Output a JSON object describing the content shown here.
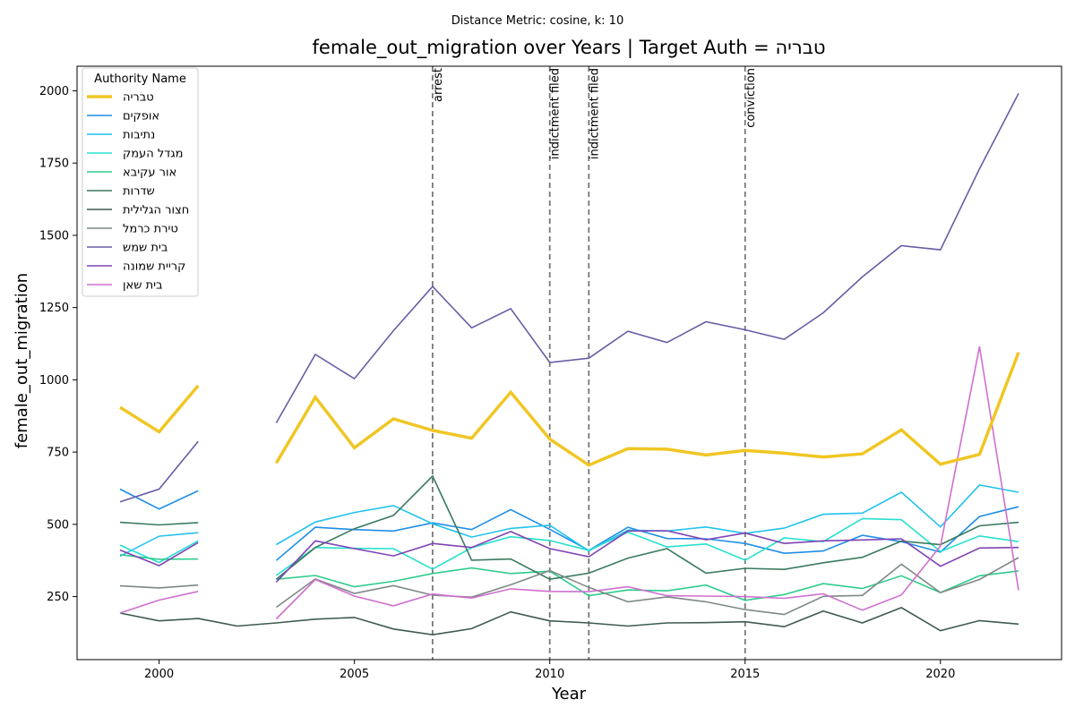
{
  "chart_data": {
    "type": "line",
    "suptitle": "Distance Metric: cosine, k: 10",
    "title": "female_out_migration over Years | Target Auth = טבריה",
    "xlabel": "Year",
    "ylabel": "female_out_migration",
    "xlim": [
      1997.9,
      2023.1
    ],
    "ylim": [
      32,
      2085
    ],
    "xticks": [
      2000,
      2005,
      2010,
      2015,
      2020
    ],
    "yticks": [
      250,
      500,
      750,
      1000,
      1250,
      1500,
      1750,
      2000
    ],
    "grid": false,
    "legend": {
      "title": "Authority Name",
      "placement": "upper-left"
    },
    "x": [
      1999,
      2000,
      2001,
      2002,
      2003,
      2004,
      2005,
      2006,
      2007,
      2008,
      2009,
      2010,
      2011,
      2012,
      2013,
      2014,
      2015,
      2016,
      2017,
      2018,
      2019,
      2020,
      2021,
      2022
    ],
    "events": [
      {
        "year": 2007,
        "label": "arrest"
      },
      {
        "year": 2010,
        "label": "indictment filed"
      },
      {
        "year": 2011,
        "label": "indictment filed"
      },
      {
        "year": 2015,
        "label": "conviction"
      }
    ],
    "series": [
      {
        "name": "טבריה",
        "color": "#f0c623",
        "width": 3.5,
        "values": [
          905,
          820,
          980,
          null,
          712,
          940,
          765,
          865,
          825,
          798,
          957,
          795,
          705,
          762,
          760,
          740,
          756,
          746,
          733,
          744,
          827,
          708,
          742,
          1095
        ]
      },
      {
        "name": "אופקים",
        "color": "#1f8ee6",
        "width": 1.6,
        "values": [
          622,
          553,
          616,
          null,
          375,
          490,
          482,
          477,
          505,
          482,
          551,
          483,
          410,
          490,
          451,
          450,
          434,
          400,
          408,
          462,
          440,
          404,
          527,
          561
        ]
      },
      {
        "name": "נתיבות",
        "color": "#22c2ee",
        "width": 1.6,
        "values": [
          390,
          459,
          471,
          null,
          430,
          508,
          541,
          565,
          502,
          456,
          486,
          497,
          408,
          480,
          477,
          491,
          469,
          487,
          535,
          539,
          611,
          491,
          636,
          611
        ]
      },
      {
        "name": "מגדל העמק",
        "color": "#25e0cf",
        "width": 1.6,
        "values": [
          428,
          368,
          443,
          null,
          323,
          420,
          417,
          416,
          345,
          419,
          457,
          444,
          410,
          473,
          422,
          432,
          376,
          453,
          440,
          520,
          516,
          406,
          460,
          440
        ]
      },
      {
        "name": "אור עקיבא",
        "color": "#2ecc8c",
        "width": 1.6,
        "values": [
          395,
          379,
          380,
          null,
          310,
          323,
          284,
          303,
          330,
          349,
          330,
          338,
          253,
          273,
          270,
          290,
          237,
          257,
          295,
          278,
          322,
          264,
          322,
          339
        ]
      },
      {
        "name": "שדרות",
        "color": "#3a7a5f",
        "width": 1.6,
        "values": [
          507,
          498,
          506,
          null,
          310,
          420,
          485,
          531,
          667,
          376,
          380,
          310,
          331,
          383,
          416,
          331,
          348,
          344,
          367,
          386,
          442,
          430,
          495,
          507
        ]
      },
      {
        "name": "חצור הגלילית",
        "color": "#3d5b4f",
        "width": 1.6,
        "values": [
          193,
          166,
          174,
          148,
          159,
          172,
          178,
          138,
          118,
          139,
          197,
          166,
          159,
          148,
          159,
          160,
          163,
          146,
          200,
          159,
          212,
          132,
          167,
          155
        ]
      },
      {
        "name": "טירת כרמל",
        "color": "#7e8985",
        "width": 1.6,
        "values": [
          287,
          280,
          290,
          null,
          213,
          311,
          261,
          288,
          255,
          248,
          291,
          340,
          282,
          232,
          249,
          232,
          205,
          188,
          251,
          254,
          362,
          264,
          309,
          385
        ]
      },
      {
        "name": "בית שמש",
        "color": "#675ea6",
        "width": 1.6,
        "values": [
          578,
          622,
          787,
          null,
          851,
          1088,
          1004,
          1170,
          1323,
          1180,
          1246,
          1060,
          1075,
          1168,
          1129,
          1201,
          1173,
          1140,
          1232,
          1356,
          1464,
          1450,
          1730,
          1991
        ]
      },
      {
        "name": "קריית שמונה",
        "color": "#7f43b5",
        "width": 1.6,
        "values": [
          411,
          357,
          437,
          null,
          300,
          443,
          416,
          391,
          434,
          420,
          475,
          416,
          388,
          477,
          478,
          447,
          470,
          434,
          443,
          446,
          450,
          355,
          418,
          420
        ]
      },
      {
        "name": "בית שאן",
        "color": "#cf6fcf",
        "width": 1.6,
        "values": [
          193,
          238,
          268,
          null,
          173,
          309,
          252,
          218,
          259,
          245,
          277,
          268,
          267,
          284,
          253,
          252,
          250,
          244,
          260,
          203,
          256,
          425,
          1115,
          272
        ]
      }
    ]
  }
}
